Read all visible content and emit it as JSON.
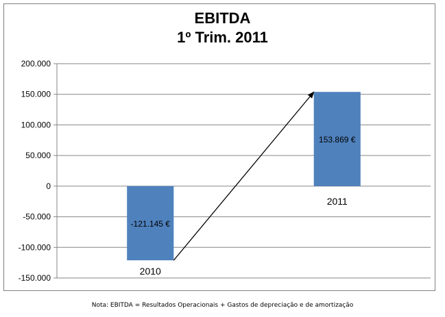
{
  "chart_data": {
    "type": "bar",
    "title": [
      "EBITDA",
      "1º Trim. 2011"
    ],
    "categories": [
      "2010",
      "2011"
    ],
    "values": [
      -121145,
      153869
    ],
    "data_labels": [
      "-121.145 €",
      "153.869 €"
    ],
    "y_tick_labels": [
      "200.000",
      "150.000",
      "100.000",
      "50.000",
      "0",
      "-50.000",
      "-100.000",
      "-150.000"
    ],
    "ylim": [
      -150000,
      200000
    ],
    "grid": true,
    "legend": "none",
    "bar_color": "#4f81bd",
    "annotations": [
      "arrow from the base of the 2010 bar to the top of the 2011 bar"
    ]
  },
  "footnote": "Nota: EBITDA = Resultados Operacionais + Gastos de depreciação e de amortização"
}
